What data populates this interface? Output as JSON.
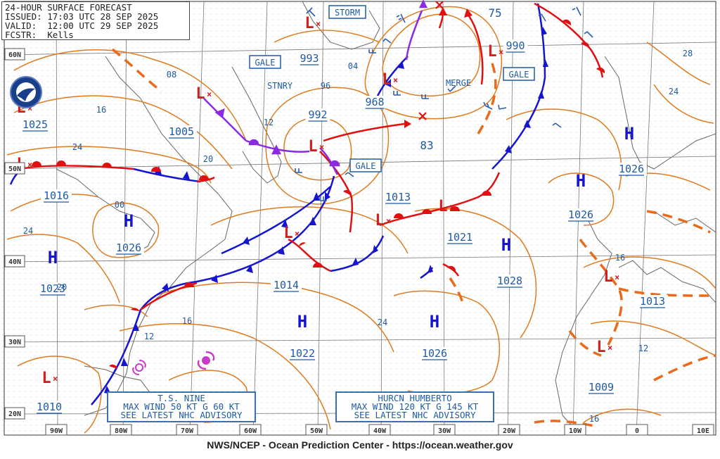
{
  "header": {
    "title": "24-HOUR SURFACE FORECAST",
    "issued": "ISSUED: 17:03 UTC 28 SEP 2025",
    "valid": "VALID:  12:00 UTC 29 SEP 2025",
    "forecaster": "FCSTR:  Kells"
  },
  "footer": "NWS/NCEP - Ocean Prediction Center - https://ocean.weather.gov",
  "lat_labels": [
    "60N",
    "50N",
    "40N",
    "30N",
    "20N"
  ],
  "lon_labels": [
    "90W",
    "80W",
    "70W",
    "60W",
    "50W",
    "40W",
    "30W",
    "20W",
    "10W",
    "0",
    "10E"
  ],
  "pressure_centers": [
    {
      "type": "L",
      "value": "1025"
    },
    {
      "type": "L",
      "value": "1005"
    },
    {
      "type": "L",
      "value": "1016"
    },
    {
      "type": "H",
      "value": "1026"
    },
    {
      "type": "H",
      "value": "1023"
    },
    {
      "type": "L",
      "value": "992"
    },
    {
      "type": "L",
      "value": "993"
    },
    {
      "type": "L",
      "value": "968"
    },
    {
      "type": "L",
      "value": "990"
    },
    {
      "type": "L",
      "value": "1013"
    },
    {
      "type": "L",
      "value": "1021"
    },
    {
      "type": "H",
      "value": "1028"
    },
    {
      "type": "L",
      "value": "1014"
    },
    {
      "type": "H",
      "value": "1022"
    },
    {
      "type": "H",
      "value": "1026"
    },
    {
      "type": "H",
      "value": "1026"
    },
    {
      "type": "H",
      "value": "1026"
    },
    {
      "type": "L",
      "value": "1013"
    },
    {
      "type": "L",
      "value": "1009"
    },
    {
      "type": "L",
      "value": "1010"
    }
  ],
  "warning_boxes": [
    "STORM",
    "GALE",
    "GALE",
    "GALE"
  ],
  "text_labels": [
    "STNRY",
    "MERGE",
    "75",
    "83"
  ],
  "isobar_labels": [
    "08",
    "16",
    "24",
    "20",
    "12",
    "04",
    "96",
    "00",
    "24",
    "20",
    "16",
    "24",
    "28",
    "24",
    "16",
    "12",
    "12",
    "16"
  ],
  "advisories": {
    "ts_nine": [
      "T.S. NINE",
      "MAX WIND 50 KT G 60 KT",
      "SEE LATEST NHC ADVISORY"
    ],
    "humberto": [
      "HURCN HUMBERTO",
      "MAX WIND 120 KT G 145 KT",
      "SEE LATEST NHC ADVISORY"
    ]
  },
  "colors": {
    "isobar": "#e07a1e",
    "cold_front": "#1515d0",
    "warm_front": "#e01010",
    "occluded": "#8a2be2",
    "label": "#1f5aa6",
    "low": "#d21f1f"
  },
  "icons": [
    "noaa-logo-icon",
    "tropical-storm-icon",
    "hurricane-icon"
  ]
}
